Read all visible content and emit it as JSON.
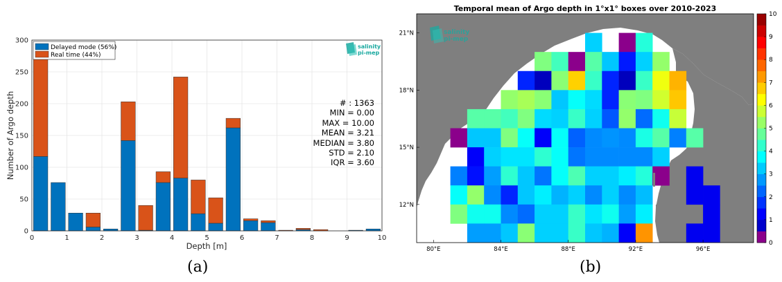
{
  "panels": {
    "a_label": "(a)",
    "b_label": "(b)"
  },
  "chart_data": [
    {
      "type": "bar",
      "stacked": true,
      "bin_width": 0.5,
      "x": [
        0.25,
        0.75,
        1.25,
        1.75,
        2.25,
        2.75,
        3.25,
        3.75,
        4.25,
        4.75,
        5.25,
        5.75,
        6.25,
        6.75,
        7.25,
        7.75,
        8.25,
        8.75,
        9.25,
        9.75
      ],
      "series": [
        {
          "name": "Delayed mode (56%)",
          "color": "#0072bd",
          "values": [
            117,
            76,
            28,
            6,
            3,
            142,
            1,
            76,
            83,
            27,
            12,
            162,
            16,
            13,
            0,
            2,
            0,
            0,
            1,
            3
          ]
        },
        {
          "name": "Real time (44%)",
          "color": "#d95319",
          "values": [
            177,
            0,
            0,
            22,
            0,
            61,
            39,
            17,
            159,
            53,
            40,
            15,
            3,
            3,
            1,
            2,
            2,
            0,
            0,
            0
          ]
        }
      ],
      "xlabel": "Depth [m]",
      "ylabel": "Number of Argo depth",
      "xlim": [
        0,
        10
      ],
      "ylim": [
        0,
        300
      ],
      "xticks": [
        "0",
        "1",
        "2",
        "3",
        "4",
        "5",
        "6",
        "7",
        "8",
        "9",
        "10"
      ],
      "yticks": [
        "0",
        "50",
        "100",
        "150",
        "200",
        "250",
        "300"
      ],
      "grid": true,
      "legend_position": "top-left",
      "logo": {
        "line1": "salinity",
        "line2": "pi-mep",
        "color": "#1aa9a0"
      },
      "stats": [
        "# : 1363",
        "MIN = 0.00",
        "MAX =  10.00",
        "MEAN = 3.21",
        "MEDIAN = 3.80",
        "STD = 2.10",
        "IQR = 3.60"
      ]
    },
    {
      "type": "heatmap",
      "title": "Temporal mean of Argo depth in 1°x1° boxes over 2010-2023",
      "lon_range": [
        79,
        99
      ],
      "lat_range": [
        10,
        22
      ],
      "xticks": [
        "80°E",
        "84°E",
        "88°E",
        "92°E",
        "96°E"
      ],
      "xtick_values": [
        80,
        84,
        88,
        92,
        96
      ],
      "yticks": [
        "12°N",
        "15°N",
        "18°N",
        "21°N"
      ],
      "ytick_values": [
        12,
        15,
        18,
        21
      ],
      "colorbar": {
        "min": 0,
        "max": 10,
        "ticks": [
          "0",
          "1",
          "2",
          "3",
          "4",
          "5",
          "6",
          "7",
          "8",
          "9",
          "10"
        ],
        "colormap": "jet"
      },
      "logo": {
        "line1": "salinity",
        "line2": "pi-mep"
      },
      "cells": [
        {
          "lon": 89,
          "lat": 20,
          "v": 3.3
        },
        {
          "lon": 91,
          "lat": 20,
          "v": 0.3
        },
        {
          "lon": 92,
          "lat": 20,
          "v": 4.1
        },
        {
          "lon": 86,
          "lat": 19,
          "v": 5.0
        },
        {
          "lon": 87,
          "lat": 19,
          "v": 4.4
        },
        {
          "lon": 88,
          "lat": 19,
          "v": 0.5
        },
        {
          "lon": 89,
          "lat": 19,
          "v": 4.6
        },
        {
          "lon": 90,
          "lat": 19,
          "v": 3.2
        },
        {
          "lon": 91,
          "lat": 19,
          "v": 1.5
        },
        {
          "lon": 92,
          "lat": 19,
          "v": 3.3
        },
        {
          "lon": 93,
          "lat": 19,
          "v": 5.2
        },
        {
          "lon": 85,
          "lat": 18,
          "v": 1.6
        },
        {
          "lon": 86,
          "lat": 18,
          "v": 0.6
        },
        {
          "lon": 87,
          "lat": 18,
          "v": 5.1
        },
        {
          "lon": 88,
          "lat": 18,
          "v": 6.7
        },
        {
          "lon": 89,
          "lat": 18,
          "v": 4.3
        },
        {
          "lon": 90,
          "lat": 18,
          "v": 1.6
        },
        {
          "lon": 91,
          "lat": 18,
          "v": 0.6
        },
        {
          "lon": 92,
          "lat": 18,
          "v": 4.3
        },
        {
          "lon": 93,
          "lat": 18,
          "v": 6.1
        },
        {
          "lon": 94,
          "lat": 18,
          "v": 7.0
        },
        {
          "lon": 84,
          "lat": 17,
          "v": 5.2
        },
        {
          "lon": 85,
          "lat": 17,
          "v": 5.4
        },
        {
          "lon": 86,
          "lat": 17,
          "v": 5.1
        },
        {
          "lon": 87,
          "lat": 17,
          "v": 3.2
        },
        {
          "lon": 88,
          "lat": 17,
          "v": 3.8
        },
        {
          "lon": 89,
          "lat": 17,
          "v": 3.4
        },
        {
          "lon": 90,
          "lat": 17,
          "v": 1.6
        },
        {
          "lon": 91,
          "lat": 17,
          "v": 5.1
        },
        {
          "lon": 92,
          "lat": 17,
          "v": 5.0
        },
        {
          "lon": 93,
          "lat": 17,
          "v": 5.8
        },
        {
          "lon": 94,
          "lat": 17,
          "v": 6.8
        },
        {
          "lon": 82,
          "lat": 16,
          "v": 4.6
        },
        {
          "lon": 83,
          "lat": 16,
          "v": 4.6
        },
        {
          "lon": 84,
          "lat": 16,
          "v": 4.4
        },
        {
          "lon": 85,
          "lat": 16,
          "v": 5.0
        },
        {
          "lon": 86,
          "lat": 16,
          "v": 3.4
        },
        {
          "lon": 87,
          "lat": 16,
          "v": 3.3
        },
        {
          "lon": 88,
          "lat": 16,
          "v": 4.3
        },
        {
          "lon": 89,
          "lat": 16,
          "v": 3.3
        },
        {
          "lon": 90,
          "lat": 16,
          "v": 2.1
        },
        {
          "lon": 91,
          "lat": 16,
          "v": 5.2
        },
        {
          "lon": 92,
          "lat": 16,
          "v": 2.3
        },
        {
          "lon": 93,
          "lat": 16,
          "v": 3.9
        },
        {
          "lon": 94,
          "lat": 16,
          "v": 5.7
        },
        {
          "lon": 81,
          "lat": 15,
          "v": 0.4
        },
        {
          "lon": 82,
          "lat": 15,
          "v": 3.2
        },
        {
          "lon": 83,
          "lat": 15,
          "v": 3.2
        },
        {
          "lon": 84,
          "lat": 15,
          "v": 5.0
        },
        {
          "lon": 85,
          "lat": 15,
          "v": 3.8
        },
        {
          "lon": 86,
          "lat": 15,
          "v": 1.2
        },
        {
          "lon": 87,
          "lat": 15,
          "v": 3.8
        },
        {
          "lon": 88,
          "lat": 15,
          "v": 2.2
        },
        {
          "lon": 89,
          "lat": 15,
          "v": 2.6
        },
        {
          "lon": 90,
          "lat": 15,
          "v": 2.7
        },
        {
          "lon": 91,
          "lat": 15,
          "v": 2.6
        },
        {
          "lon": 92,
          "lat": 15,
          "v": 4.0
        },
        {
          "lon": 93,
          "lat": 15,
          "v": 4.6
        },
        {
          "lon": 94,
          "lat": 15,
          "v": 2.5
        },
        {
          "lon": 95,
          "lat": 15,
          "v": 4.6
        },
        {
          "lon": 82,
          "lat": 14,
          "v": 1.2
        },
        {
          "lon": 83,
          "lat": 14,
          "v": 3.3
        },
        {
          "lon": 84,
          "lat": 14,
          "v": 3.5
        },
        {
          "lon": 85,
          "lat": 14,
          "v": 3.5
        },
        {
          "lon": 86,
          "lat": 14,
          "v": 4.2
        },
        {
          "lon": 87,
          "lat": 14,
          "v": 3.8
        },
        {
          "lon": 88,
          "lat": 14,
          "v": 2.4
        },
        {
          "lon": 89,
          "lat": 14,
          "v": 2.6
        },
        {
          "lon": 90,
          "lat": 14,
          "v": 2.6
        },
        {
          "lon": 91,
          "lat": 14,
          "v": 2.6
        },
        {
          "lon": 92,
          "lat": 14,
          "v": 2.6
        },
        {
          "lon": 93,
          "lat": 14,
          "v": 3.3
        },
        {
          "lon": 81,
          "lat": 13,
          "v": 2.5
        },
        {
          "lon": 82,
          "lat": 13,
          "v": 1.4
        },
        {
          "lon": 83,
          "lat": 13,
          "v": 2.8
        },
        {
          "lon": 84,
          "lat": 13,
          "v": 4.2
        },
        {
          "lon": 85,
          "lat": 13,
          "v": 3.2
        },
        {
          "lon": 86,
          "lat": 13,
          "v": 2.4
        },
        {
          "lon": 87,
          "lat": 13,
          "v": 3.8
        },
        {
          "lon": 88,
          "lat": 13,
          "v": 4.5
        },
        {
          "lon": 89,
          "lat": 13,
          "v": 3.3
        },
        {
          "lon": 90,
          "lat": 13,
          "v": 3.3
        },
        {
          "lon": 91,
          "lat": 13,
          "v": 3.6
        },
        {
          "lon": 92,
          "lat": 13,
          "v": 4.1
        },
        {
          "lon": 93,
          "lat": 13,
          "v": 0.4
        },
        {
          "lon": 95,
          "lat": 13,
          "v": 1.1
        },
        {
          "lon": 81,
          "lat": 12,
          "v": 3.8
        },
        {
          "lon": 82,
          "lat": 12,
          "v": 5.2
        },
        {
          "lon": 83,
          "lat": 12,
          "v": 2.6
        },
        {
          "lon": 84,
          "lat": 12,
          "v": 1.6
        },
        {
          "lon": 85,
          "lat": 12,
          "v": 3.2
        },
        {
          "lon": 86,
          "lat": 12,
          "v": 3.6
        },
        {
          "lon": 87,
          "lat": 12,
          "v": 3.0
        },
        {
          "lon": 88,
          "lat": 12,
          "v": 3.3
        },
        {
          "lon": 89,
          "lat": 12,
          "v": 2.6
        },
        {
          "lon": 90,
          "lat": 12,
          "v": 3.3
        },
        {
          "lon": 91,
          "lat": 12,
          "v": 2.6
        },
        {
          "lon": 92,
          "lat": 12,
          "v": 3.1
        },
        {
          "lon": 95,
          "lat": 12,
          "v": 1.1
        },
        {
          "lon": 96,
          "lat": 12,
          "v": 1.1
        },
        {
          "lon": 81,
          "lat": 11,
          "v": 5.0
        },
        {
          "lon": 82,
          "lat": 11,
          "v": 3.9
        },
        {
          "lon": 83,
          "lat": 11,
          "v": 3.9
        },
        {
          "lon": 84,
          "lat": 11,
          "v": 2.6
        },
        {
          "lon": 85,
          "lat": 11,
          "v": 2.3
        },
        {
          "lon": 86,
          "lat": 11,
          "v": 3.3
        },
        {
          "lon": 87,
          "lat": 11,
          "v": 3.3
        },
        {
          "lon": 88,
          "lat": 11,
          "v": 4.3
        },
        {
          "lon": 89,
          "lat": 11,
          "v": 3.5
        },
        {
          "lon": 90,
          "lat": 11,
          "v": 3.9
        },
        {
          "lon": 91,
          "lat": 11,
          "v": 2.8
        },
        {
          "lon": 92,
          "lat": 11,
          "v": 3.6
        },
        {
          "lon": 96,
          "lat": 11,
          "v": 1.1
        },
        {
          "lon": 82,
          "lat": 10,
          "v": 2.8
        },
        {
          "lon": 83,
          "lat": 10,
          "v": 2.8
        },
        {
          "lon": 84,
          "lat": 10,
          "v": 3.2
        },
        {
          "lon": 85,
          "lat": 10,
          "v": 5.1
        },
        {
          "lon": 86,
          "lat": 10,
          "v": 3.3
        },
        {
          "lon": 87,
          "lat": 10,
          "v": 3.3
        },
        {
          "lon": 88,
          "lat": 10,
          "v": 4.3
        },
        {
          "lon": 89,
          "lat": 10,
          "v": 3.2
        },
        {
          "lon": 90,
          "lat": 10,
          "v": 3.0
        },
        {
          "lon": 91,
          "lat": 10,
          "v": 1.2
        },
        {
          "lon": 92,
          "lat": 10,
          "v": 7.3
        },
        {
          "lon": 95,
          "lat": 10,
          "v": 1.1
        },
        {
          "lon": 96,
          "lat": 10,
          "v": 1.1
        }
      ]
    }
  ]
}
